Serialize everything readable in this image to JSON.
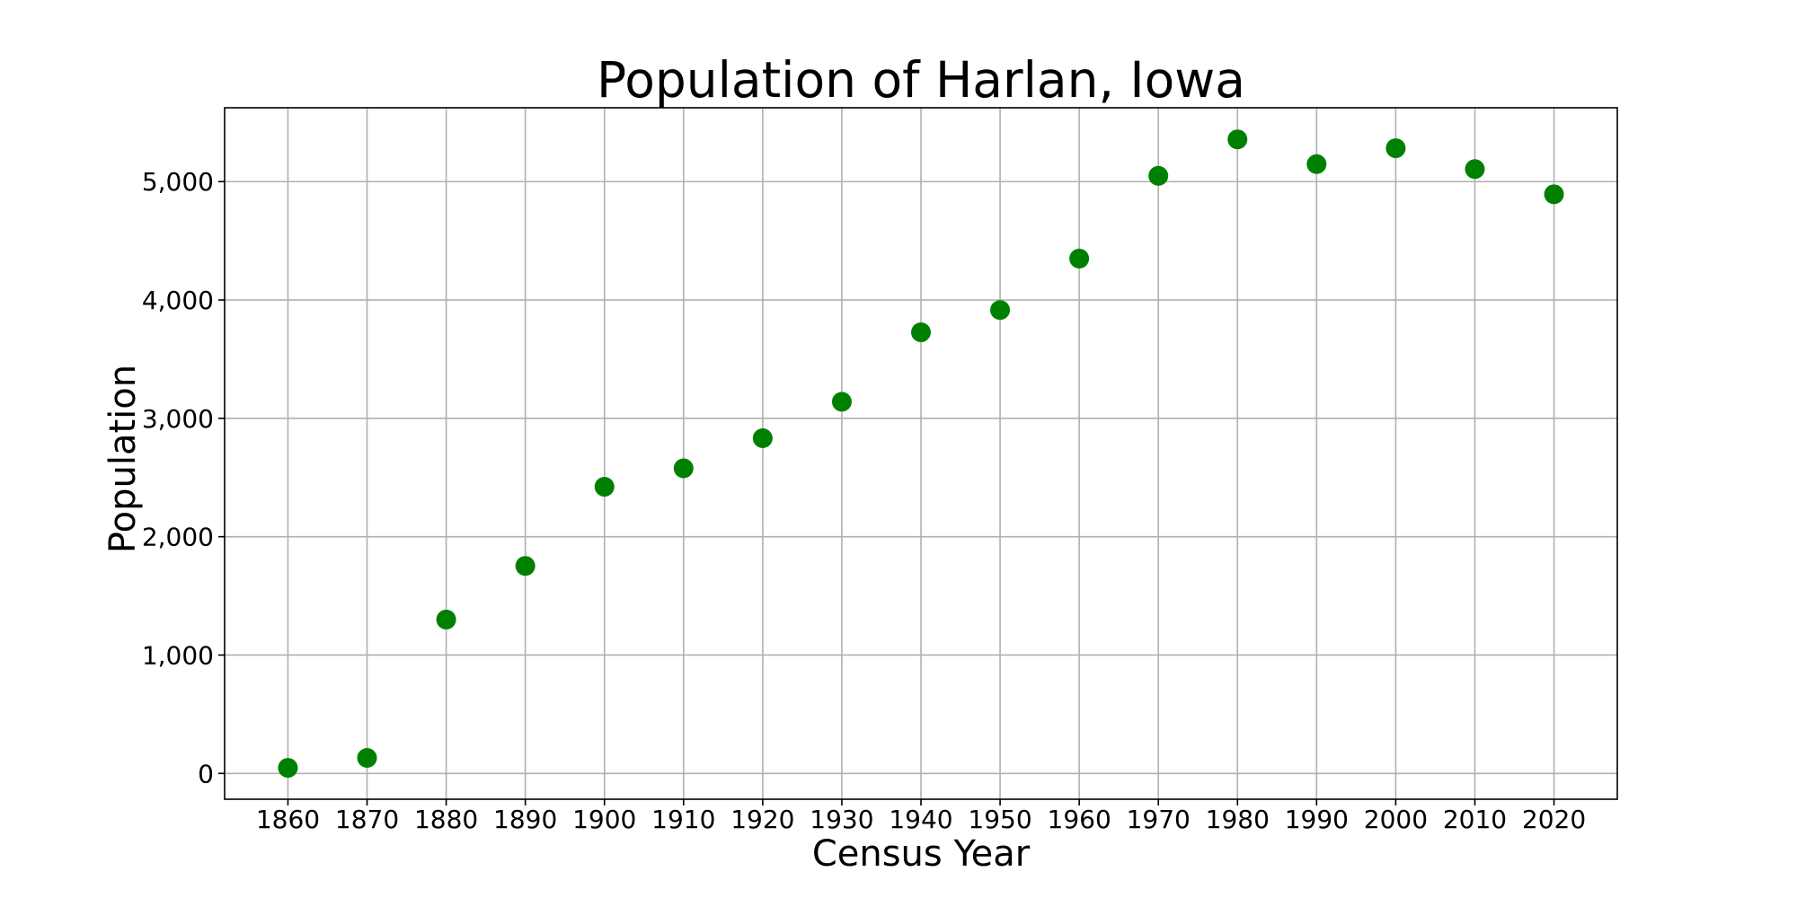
{
  "chart_data": {
    "type": "scatter",
    "title": "Population of Harlan, Iowa",
    "xlabel": "Census Year",
    "ylabel": "Population",
    "x": [
      1860,
      1870,
      1880,
      1890,
      1900,
      1910,
      1920,
      1930,
      1940,
      1950,
      1960,
      1970,
      1980,
      1990,
      2000,
      2010,
      2020
    ],
    "series": [
      {
        "name": "Population",
        "color": "#008000",
        "values": [
          47,
          131,
          1300,
          1753,
          2422,
          2578,
          2832,
          3140,
          3727,
          3915,
          4350,
          5049,
          5357,
          5148,
          5282,
          5106,
          4893
        ]
      }
    ],
    "xticks": [
      "1860",
      "1870",
      "1880",
      "1890",
      "1900",
      "1910",
      "1920",
      "1930",
      "1940",
      "1950",
      "1960",
      "1970",
      "1980",
      "1990",
      "2000",
      "2010",
      "2020"
    ],
    "yticks": [
      {
        "value": 0,
        "label": "0"
      },
      {
        "value": 1000,
        "label": "1,000"
      },
      {
        "value": 2000,
        "label": "2,000"
      },
      {
        "value": 3000,
        "label": "3,000"
      },
      {
        "value": 4000,
        "label": "4,000"
      },
      {
        "value": 5000,
        "label": "5,000"
      }
    ],
    "xlim": [
      1852,
      2028
    ],
    "ylim": [
      -218,
      5624
    ],
    "grid": true,
    "legend": null
  }
}
